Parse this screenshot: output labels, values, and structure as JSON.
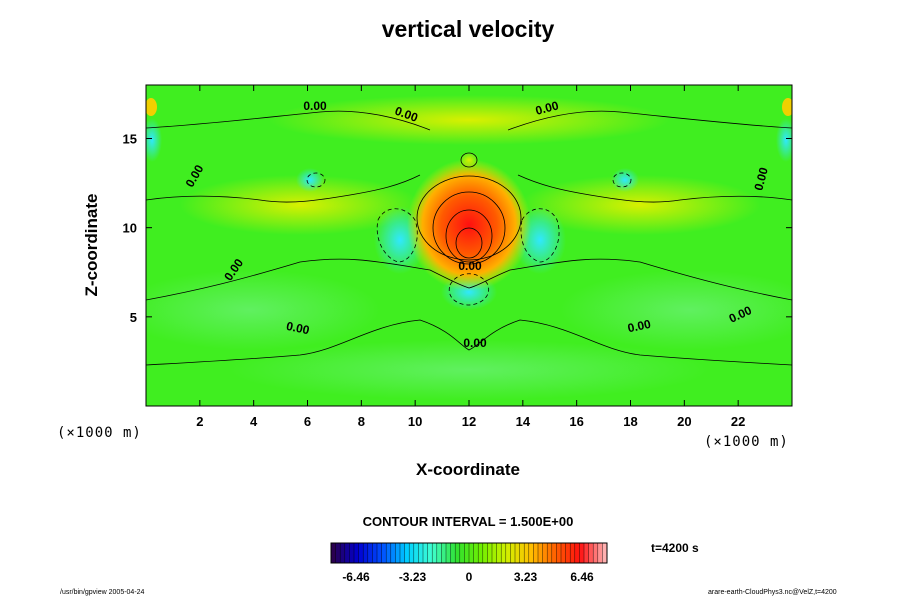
{
  "chart_data": {
    "type": "heatmap",
    "title": "vertical velocity",
    "xlabel": "X-coordinate",
    "ylabel": "Z-coordinate",
    "x_unit": "(×1000 m)",
    "y_unit": "(×1000 m)",
    "xlim": [
      0,
      24
    ],
    "ylim": [
      0,
      18
    ],
    "x_ticks": [
      2,
      4,
      6,
      8,
      10,
      12,
      14,
      16,
      18,
      20,
      22
    ],
    "y_ticks": [
      5,
      10,
      15
    ],
    "contour_interval_text": "CONTOUR INTERVAL = 1.500E+00",
    "contour_labels": [
      "0.00",
      "0.00",
      "0.00",
      "0.00",
      "0.00",
      "0.00",
      "0.00",
      "0.00",
      "0.00",
      "0.00",
      "0.00"
    ],
    "features": {
      "updraft_center": [
        12,
        8.9
      ],
      "updraft_max_level": 6.46,
      "downdraft_left_center": [
        9.6,
        9.5
      ],
      "downdraft_right_center": [
        14.5,
        9.5
      ]
    },
    "colorbar": {
      "min": -6.46,
      "max": 6.46,
      "tick_labels": [
        "-6.46",
        "-3.23",
        "0",
        "3.23",
        "6.46"
      ],
      "tick_values": [
        -6.46,
        -3.23,
        0,
        3.23,
        6.46
      ],
      "colors": [
        "#2a0050",
        "#0000d0",
        "#0050ff",
        "#00d0ff",
        "#40ffd0",
        "#30e030",
        "#70f000",
        "#d0f000",
        "#ffc000",
        "#ff6000",
        "#ff1010",
        "#ffb0b0"
      ]
    },
    "time_label": "t=4200 s"
  },
  "footer": {
    "left": "/usr/bin/gpview 2005-04-24",
    "right": "arare-earth-CloudPhys3.nc@VelZ,t=4200"
  }
}
